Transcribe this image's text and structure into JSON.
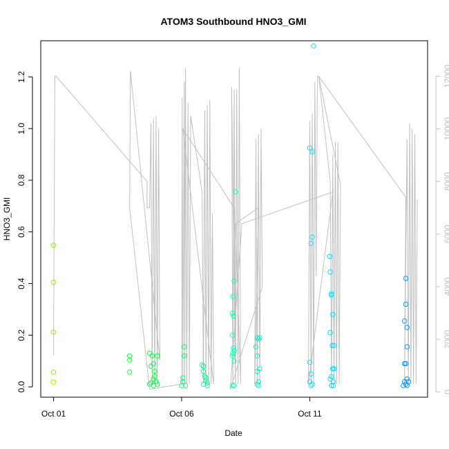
{
  "chart_data": {
    "type": "scatter",
    "title": "ATOM3 Southbound HNO3_GMI",
    "xlabel": "Date",
    "ylabel": "HNO3_GMI",
    "x_ticks": [
      "Oct 01",
      "Oct 06",
      "Oct 11"
    ],
    "y_ticks": [
      "0.0",
      "0.2",
      "0.4",
      "0.6",
      "0.8",
      "1.0",
      "1.2"
    ],
    "y2_ticks": [
      "0",
      "2000",
      "4000",
      "6000",
      "8000",
      "10000",
      "12000"
    ],
    "xlim_days": [
      -0.5,
      14.6
    ],
    "ylim": [
      -0.04,
      1.34
    ],
    "y2lim": [
      -200,
      13350
    ],
    "grid": false,
    "colors": {
      "altitude_line": "#bfbfbf",
      "right_axis": "#bfbfbf",
      "gradient": [
        "#8ef000",
        "#00ff30",
        "#00ffb8",
        "#00e0ff",
        "#0090ff"
      ]
    },
    "series": [
      {
        "points": [
          [
            0.0,
            0.548
          ],
          [
            0.0,
            0.405
          ],
          [
            0.0,
            0.212
          ],
          [
            0.0,
            0.057
          ],
          [
            0.0,
            0.018
          ],
          [
            2.97,
            0.12
          ],
          [
            2.97,
            0.104
          ],
          [
            2.97,
            0.057
          ],
          [
            3.75,
            0.13
          ],
          [
            3.85,
            0.12
          ],
          [
            3.9,
            0.09
          ],
          [
            3.95,
            0.06
          ],
          [
            3.95,
            0.04
          ],
          [
            4.0,
            0.02
          ],
          [
            3.8,
            0.015
          ],
          [
            3.9,
            0.005
          ],
          [
            4.05,
            0.01
          ],
          [
            4.05,
            0.12
          ],
          [
            3.8,
            0.08
          ],
          [
            3.9,
            0.03
          ],
          [
            3.75,
            0.01
          ],
          [
            5.05,
            0.035
          ],
          [
            5.1,
            0.155
          ],
          [
            5.1,
            0.12
          ],
          [
            5.05,
            0.02
          ],
          [
            5.0,
            0.005
          ],
          [
            5.15,
            0.005
          ],
          [
            5.8,
            0.085
          ],
          [
            5.85,
            0.08
          ],
          [
            5.85,
            0.06
          ],
          [
            5.9,
            0.04
          ],
          [
            5.95,
            0.035
          ],
          [
            5.95,
            0.025
          ],
          [
            6.0,
            0.015
          ],
          [
            5.85,
            0.01
          ],
          [
            6.0,
            0.005
          ],
          [
            7.0,
            0.005
          ],
          [
            7.05,
            0.005
          ],
          [
            7.1,
            0.755
          ],
          [
            7.05,
            0.41
          ],
          [
            7.0,
            0.35
          ],
          [
            6.98,
            0.285
          ],
          [
            7.02,
            0.275
          ],
          [
            6.98,
            0.2
          ],
          [
            7.02,
            0.15
          ],
          [
            7.05,
            0.14
          ],
          [
            7.0,
            0.13
          ],
          [
            6.98,
            0.12
          ],
          [
            7.05,
            0.1
          ],
          [
            7.95,
            0.19
          ],
          [
            8.0,
            0.185
          ],
          [
            8.05,
            0.19
          ],
          [
            7.9,
            0.155
          ],
          [
            7.95,
            0.12
          ],
          [
            8.05,
            0.07
          ],
          [
            7.95,
            0.06
          ],
          [
            8.0,
            0.02
          ],
          [
            7.95,
            0.01
          ],
          [
            8.0,
            0.005
          ],
          [
            10.0,
            0.925
          ],
          [
            10.1,
            0.91
          ],
          [
            10.15,
            1.32
          ],
          [
            10.1,
            0.58
          ],
          [
            10.05,
            0.555
          ],
          [
            10.0,
            0.095
          ],
          [
            10.05,
            0.05
          ],
          [
            10.0,
            0.02
          ],
          [
            10.1,
            0.01
          ],
          [
            10.05,
            0.005
          ],
          [
            10.78,
            0.505
          ],
          [
            10.8,
            0.445
          ],
          [
            10.85,
            0.36
          ],
          [
            10.85,
            0.355
          ],
          [
            10.9,
            0.28
          ],
          [
            10.8,
            0.21
          ],
          [
            10.88,
            0.16
          ],
          [
            10.95,
            0.16
          ],
          [
            10.9,
            0.07
          ],
          [
            10.95,
            0.07
          ],
          [
            10.85,
            0.04
          ],
          [
            10.8,
            0.03
          ],
          [
            10.92,
            0.02
          ],
          [
            10.85,
            0.005
          ],
          [
            10.92,
            0.005
          ],
          [
            13.75,
            0.42
          ],
          [
            13.75,
            0.32
          ],
          [
            13.8,
            0.23
          ],
          [
            13.7,
            0.255
          ],
          [
            13.8,
            0.155
          ],
          [
            13.7,
            0.09
          ],
          [
            13.75,
            0.09
          ],
          [
            13.8,
            0.03
          ],
          [
            13.7,
            0.02
          ],
          [
            13.85,
            0.02
          ],
          [
            13.75,
            0.01
          ],
          [
            13.8,
            0.005
          ],
          [
            13.65,
            0.005
          ]
        ]
      }
    ],
    "altitude_path": [
      [
        0.0,
        1400
      ],
      [
        0.05,
        12000
      ],
      [
        0.1,
        12000
      ],
      [
        3.65,
        8000
      ],
      [
        3.65,
        7000
      ],
      [
        3.7,
        7000
      ],
      [
        3.75,
        7000
      ],
      [
        3.8,
        10200
      ],
      [
        3.85,
        300
      ],
      [
        3.9,
        10400
      ],
      [
        3.95,
        300
      ],
      [
        4.0,
        10500
      ],
      [
        4.05,
        300
      ],
      [
        4.1,
        10000
      ],
      [
        4.15,
        1200
      ],
      [
        3.0,
        12200
      ],
      [
        3.0,
        12200
      ],
      [
        2.97,
        7000
      ],
      [
        3.75,
        100
      ],
      [
        5.0,
        300
      ],
      [
        5.02,
        11200
      ],
      [
        5.05,
        300
      ],
      [
        5.1,
        11800
      ],
      [
        5.12,
        300
      ],
      [
        5.15,
        12300
      ],
      [
        5.2,
        300
      ],
      [
        5.25,
        11000
      ],
      [
        5.3,
        300
      ],
      [
        5.35,
        10500
      ],
      [
        5.8,
        7600
      ],
      [
        5.85,
        300
      ],
      [
        5.9,
        10700
      ],
      [
        5.95,
        300
      ],
      [
        6.0,
        10900
      ],
      [
        6.05,
        300
      ],
      [
        6.1,
        11100
      ],
      [
        6.15,
        300
      ],
      [
        6.2,
        6800
      ],
      [
        6.25,
        300
      ],
      [
        5.05,
        10000
      ],
      [
        7.05,
        7000
      ],
      [
        7.1,
        300
      ],
      [
        6.95,
        11600
      ],
      [
        7.0,
        300
      ],
      [
        7.05,
        11500
      ],
      [
        7.1,
        300
      ],
      [
        7.15,
        11500
      ],
      [
        7.2,
        300
      ],
      [
        7.25,
        12300
      ],
      [
        7.3,
        300
      ],
      [
        7.1,
        6400
      ],
      [
        8.0,
        7000
      ],
      [
        7.85,
        300
      ],
      [
        7.9,
        9600
      ],
      [
        7.95,
        300
      ],
      [
        8.0,
        9800
      ],
      [
        8.05,
        300
      ],
      [
        8.1,
        10000
      ],
      [
        8.15,
        4000
      ],
      [
        6.9,
        100
      ],
      [
        7.35,
        6400
      ],
      [
        10.9,
        7600
      ],
      [
        9.95,
        300
      ],
      [
        10.0,
        10300
      ],
      [
        10.05,
        300
      ],
      [
        10.1,
        10600
      ],
      [
        10.15,
        300
      ],
      [
        10.2,
        11800
      ],
      [
        10.25,
        4400
      ],
      [
        10.3,
        12000
      ],
      [
        10.35,
        12000
      ],
      [
        10.8,
        8000
      ],
      [
        10.85,
        300
      ],
      [
        10.9,
        9000
      ],
      [
        10.95,
        300
      ],
      [
        11.0,
        9500
      ],
      [
        11.05,
        300
      ],
      [
        11.1,
        9500
      ],
      [
        11.15,
        300
      ],
      [
        11.2,
        7900
      ],
      [
        10.35,
        12000
      ],
      [
        13.75,
        7400
      ],
      [
        13.7,
        300
      ],
      [
        13.8,
        9600
      ],
      [
        13.85,
        300
      ],
      [
        13.9,
        10200
      ],
      [
        13.95,
        300
      ],
      [
        14.0,
        10000
      ],
      [
        14.05,
        300
      ],
      [
        14.1,
        9800
      ],
      [
        14.15,
        300
      ],
      [
        14.2,
        7300
      ]
    ]
  }
}
